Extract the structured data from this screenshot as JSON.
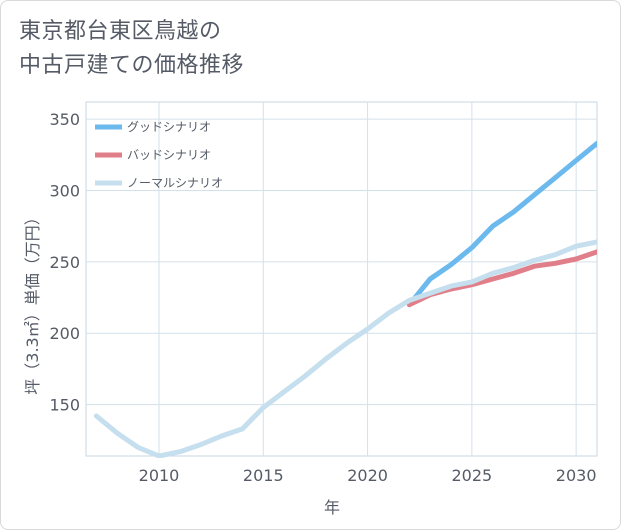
{
  "title": {
    "line1": "東京都台東区鳥越の",
    "line2": "中古戸建ての価格推移"
  },
  "chart_data": {
    "type": "line",
    "xlabel": "年",
    "ylabel": "坪（3.3㎡）単価（万円）",
    "xlim": [
      2006.5,
      2031
    ],
    "ylim": [
      114,
      362
    ],
    "x_ticks": [
      2010,
      2015,
      2020,
      2025,
      2030
    ],
    "y_ticks": [
      150,
      200,
      250,
      300,
      350
    ],
    "x_tick_labels": [
      "2010",
      "2015",
      "2020",
      "2025",
      "2030"
    ],
    "y_tick_labels": [
      "150",
      "200",
      "250",
      "300",
      "350"
    ],
    "legend_position": "top-left",
    "series": [
      {
        "name": "グッドシナリオ",
        "color": "#6cb9ee",
        "x": [
          2022,
          2023,
          2024,
          2025,
          2026,
          2027,
          2028,
          2029,
          2030,
          2031
        ],
        "values": [
          220,
          238,
          248,
          260,
          275,
          285,
          297,
          309,
          321,
          333
        ]
      },
      {
        "name": "バッドシナリオ",
        "color": "#e07f89",
        "x": [
          2022,
          2023,
          2024,
          2025,
          2026,
          2027,
          2028,
          2029,
          2030,
          2031
        ],
        "values": [
          220,
          227,
          231,
          234,
          238,
          242,
          247,
          249,
          252,
          257
        ]
      },
      {
        "name": "ノーマルシナリオ",
        "color": "#c5dfee",
        "x": [
          2007,
          2008,
          2009,
          2010,
          2011,
          2012,
          2013,
          2014,
          2015,
          2016,
          2017,
          2018,
          2019,
          2020,
          2021,
          2022,
          2023,
          2024,
          2025,
          2026,
          2027,
          2028,
          2029,
          2030,
          2031
        ],
        "values": [
          142,
          130,
          120,
          114,
          117,
          122,
          128,
          133,
          148,
          159,
          170,
          182,
          193,
          203,
          214,
          223,
          228,
          233,
          236,
          242,
          246,
          251,
          255,
          261,
          264
        ]
      }
    ]
  }
}
